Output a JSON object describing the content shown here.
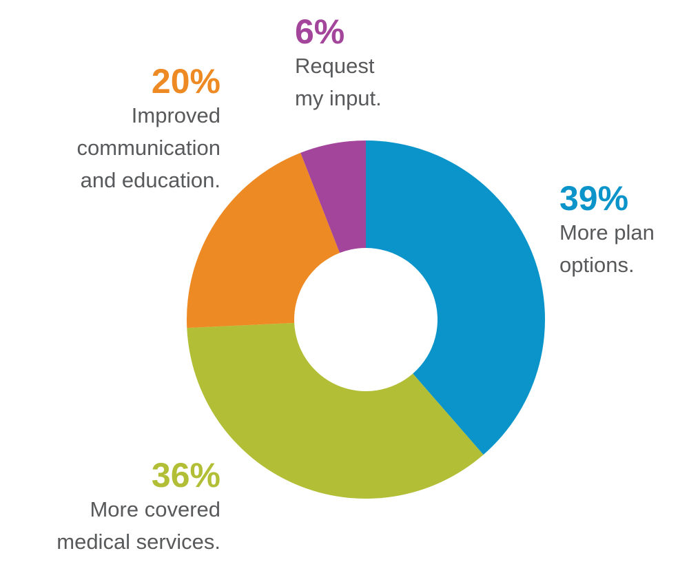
{
  "chart_data": {
    "type": "pie",
    "categories": [
      "More plan options.",
      "More covered medical services.",
      "Improved communication and education.",
      "Request my input."
    ],
    "values": [
      39,
      36,
      20,
      6
    ],
    "value_labels": [
      "39%",
      "36%",
      "20%",
      "6%"
    ],
    "colors": [
      "#0b94c9",
      "#b2bf36",
      "#ee8a24",
      "#a3459a"
    ],
    "label_lines": [
      [
        "More plan",
        "options."
      ],
      [
        "More covered",
        "medical services."
      ],
      [
        "Improved",
        "communication",
        "and education."
      ],
      [
        "Request",
        "my input."
      ]
    ],
    "donut": true,
    "start_angle_deg": 0,
    "direction": "clockwise"
  },
  "colors": {
    "background": "#ffffff",
    "text": "#58595b"
  }
}
